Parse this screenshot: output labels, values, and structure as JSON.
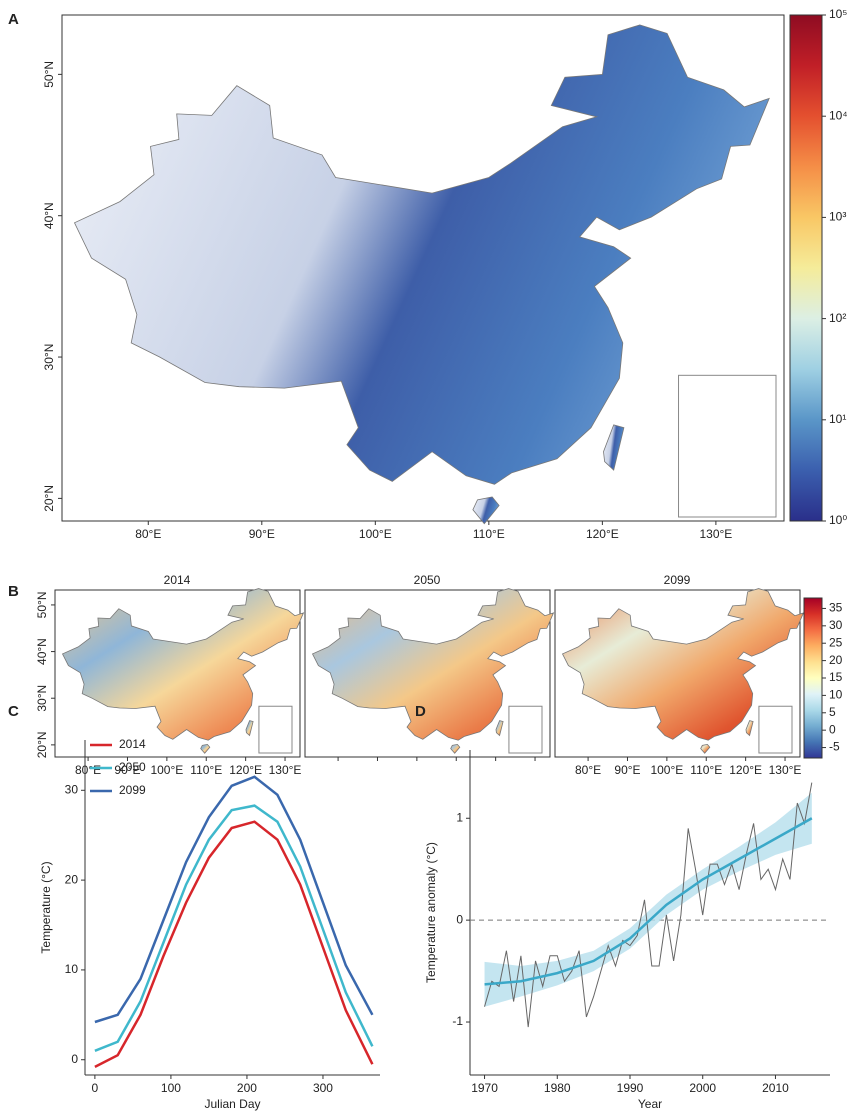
{
  "chart_data": [
    {
      "type": "map",
      "label": "A",
      "xlim": [
        72.4,
        136
      ],
      "ylim": [
        18.4,
        54.2
      ],
      "xticks": [
        {
          "value": 80,
          "label": "80°E"
        },
        {
          "value": 90,
          "label": "90°E"
        },
        {
          "value": 100,
          "label": "100°E"
        },
        {
          "value": 110,
          "label": "110°E"
        },
        {
          "value": 120,
          "label": "120°E"
        },
        {
          "value": 130,
          "label": "130°E"
        }
      ],
      "yticks": [
        {
          "value": 20,
          "label": "20°N"
        },
        {
          "value": 30,
          "label": "30°N"
        },
        {
          "value": 40,
          "label": "40°N"
        },
        {
          "value": 50,
          "label": "50°N"
        }
      ],
      "colorbar": {
        "scale": "log",
        "lim": [
          1,
          100000
        ],
        "ticks": [
          {
            "value": 1,
            "label": "10⁰"
          },
          {
            "value": 10,
            "label": "10¹"
          },
          {
            "value": 100,
            "label": "10²"
          },
          {
            "value": 1000,
            "label": "10³"
          },
          {
            "value": 10000,
            "label": "10⁴"
          },
          {
            "value": 100000,
            "label": "10⁵"
          }
        ],
        "colors": [
          "#2a2f8a",
          "#3b5fae",
          "#5a96c8",
          "#9fd0e3",
          "#dcefe4",
          "#f5ec9a",
          "#f9c765",
          "#f58e47",
          "#e4502f",
          "#c11f27",
          "#8e0c22"
        ]
      }
    },
    {
      "type": "map-panels",
      "label": "B",
      "titles": [
        "2014",
        "2050",
        "2099"
      ],
      "xlim": [
        71.6,
        133.8
      ],
      "ylim": [
        17.4,
        53.2
      ],
      "xticks": [
        {
          "value": 80,
          "label": "80°E"
        },
        {
          "value": 90,
          "label": "90°E"
        },
        {
          "value": 100,
          "label": "100°E"
        },
        {
          "value": 110,
          "label": "110°E"
        },
        {
          "value": 120,
          "label": "120°E"
        },
        {
          "value": 130,
          "label": "130°E"
        }
      ],
      "yticks": [
        {
          "value": 20,
          "label": "20°N"
        },
        {
          "value": 30,
          "label": "30°N"
        },
        {
          "value": 40,
          "label": "40°N"
        },
        {
          "value": 50,
          "label": "50°N"
        }
      ],
      "colorbar": {
        "scale": "linear",
        "lim": [
          -8,
          38
        ],
        "ticks": [
          -5,
          0,
          5,
          10,
          15,
          20,
          25,
          30,
          35
        ],
        "colors": [
          "#313695",
          "#4575b4",
          "#74add1",
          "#abd9e9",
          "#e0f3f8",
          "#ffffbf",
          "#fee090",
          "#fdae61",
          "#f46d43",
          "#d73027",
          "#a50026"
        ]
      }
    },
    {
      "type": "line",
      "label": "C",
      "x_label": "Julian Day",
      "y_label": "Temperature (°C)",
      "xlim": [
        -13,
        375
      ],
      "ylim": [
        -1.7,
        35.6
      ],
      "xticks": [
        0,
        100,
        200,
        300
      ],
      "yticks": [
        0,
        10,
        20,
        30
      ],
      "legend": "top-left",
      "x": [
        0,
        30,
        60,
        90,
        120,
        150,
        180,
        210,
        240,
        270,
        300,
        330,
        365
      ],
      "series": [
        {
          "name": "2014",
          "color": "#d7262b",
          "values": [
            -0.8,
            0.5,
            5,
            11.5,
            17.5,
            22.5,
            25.8,
            26.5,
            24.5,
            19.5,
            12.5,
            5.5,
            -0.5
          ]
        },
        {
          "name": "2050",
          "color": "#3fb8cc",
          "values": [
            1,
            2,
            6.5,
            13,
            19.5,
            24.5,
            27.8,
            28.3,
            26.5,
            21.5,
            14.5,
            7.5,
            1.5
          ]
        },
        {
          "name": "2099",
          "color": "#3a68ad",
          "values": [
            4.2,
            5,
            9,
            15.5,
            22,
            27,
            30.5,
            31.5,
            29.5,
            24.5,
            17.5,
            10.5,
            5
          ]
        }
      ]
    },
    {
      "type": "line",
      "label": "D",
      "x_label": "Year",
      "y_label": "Temperature anomaly (°C)",
      "xlim": [
        1968,
        2017.5
      ],
      "ylim": [
        -1.52,
        1.67
      ],
      "xticks": [
        1970,
        1980,
        1990,
        2000,
        2010
      ],
      "yticks": [
        -1,
        0,
        1
      ],
      "hline": 0,
      "series": [
        {
          "color": "#666666",
          "x": [
            1970,
            1971,
            1972,
            1973,
            1974,
            1975,
            1976,
            1977,
            1978,
            1979,
            1980,
            1981,
            1982,
            1983,
            1984,
            1985,
            1986,
            1987,
            1988,
            1989,
            1990,
            1991,
            1992,
            1993,
            1994,
            1995,
            1996,
            1997,
            1998,
            1999,
            2000,
            2001,
            2002,
            2003,
            2004,
            2005,
            2006,
            2007,
            2008,
            2009,
            2010,
            2011,
            2012,
            2013,
            2014,
            2015
          ],
          "values": [
            -0.85,
            -0.6,
            -0.65,
            -0.3,
            -0.8,
            -0.35,
            -1.05,
            -0.4,
            -0.65,
            -0.35,
            -0.35,
            -0.6,
            -0.5,
            -0.3,
            -0.95,
            -0.75,
            -0.5,
            -0.25,
            -0.45,
            -0.2,
            -0.25,
            -0.15,
            0.2,
            -0.45,
            -0.45,
            0.05,
            -0.4,
            0.05,
            0.9,
            0.5,
            0.05,
            0.55,
            0.55,
            0.35,
            0.55,
            0.3,
            0.65,
            0.95,
            0.4,
            0.5,
            0.3,
            0.6,
            0.4,
            1.15,
            0.95,
            1.35
          ]
        }
      ],
      "trend": {
        "color": "#3aa8c8",
        "band_color": "#b5dfec",
        "x": [
          1970,
          1975,
          1980,
          1985,
          1990,
          1995,
          2000,
          2005,
          2010,
          2015
        ],
        "values": [
          -0.63,
          -0.6,
          -0.52,
          -0.4,
          -0.18,
          0.15,
          0.4,
          0.6,
          0.8,
          1.0
        ],
        "lower": [
          -0.85,
          -0.75,
          -0.64,
          -0.5,
          -0.28,
          0.05,
          0.3,
          0.48,
          0.64,
          0.75
        ],
        "upper": [
          -0.41,
          -0.45,
          -0.4,
          -0.3,
          -0.08,
          0.25,
          0.5,
          0.72,
          0.96,
          1.25
        ]
      }
    }
  ]
}
